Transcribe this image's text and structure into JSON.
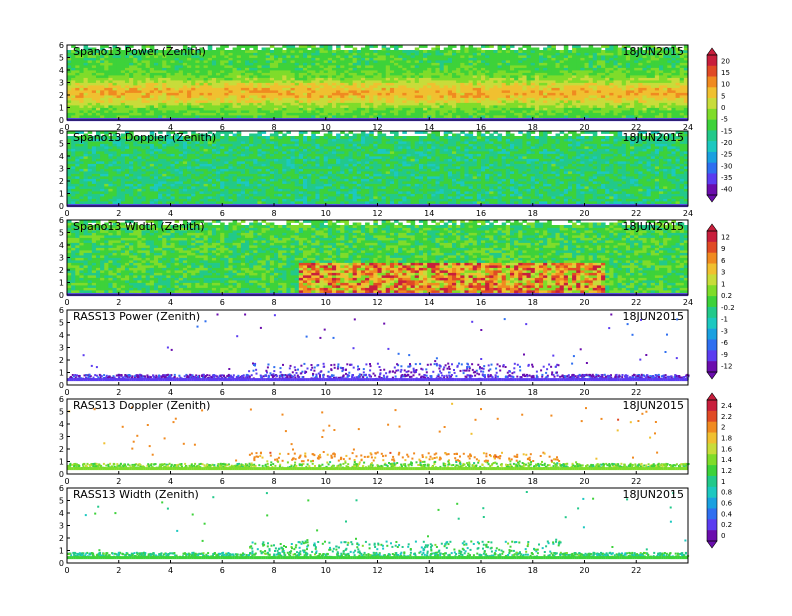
{
  "date_label": "18JUN2015",
  "palettes": {
    "spectral": [
      "#6a0dad",
      "#5b3cf0",
      "#2f6ff0",
      "#1aa0e0",
      "#1cc8c0",
      "#22c98a",
      "#3dd23a",
      "#7fdc2a",
      "#c8dc3a",
      "#f0c030",
      "#f08a20",
      "#e04a25",
      "#c81e3c"
    ],
    "width_low": [
      "#3dd23a",
      "#36cf5a",
      "#22c98a",
      "#7fdc2a",
      "#1cc8c0"
    ]
  },
  "chart_data": [
    {
      "type": "heatmap",
      "title": "Spano13 Power (Zenith)",
      "x_ticks": [
        0,
        2,
        4,
        6,
        8,
        10,
        12,
        14,
        16,
        18,
        20,
        22,
        24
      ],
      "y_ticks": [
        0,
        1,
        2,
        3,
        4,
        5,
        6
      ],
      "xlim": [
        0,
        24
      ],
      "ylim": [
        0,
        6
      ],
      "z_bias": 0.55,
      "colorbar": {
        "ticks": [
          "20",
          "15",
          "10",
          "5",
          "0",
          "-5",
          "-15",
          "-20",
          "-25",
          "-30",
          "-35",
          "-40"
        ]
      }
    },
    {
      "type": "heatmap",
      "title": "Spano13 Doppler (Zenith)",
      "x_ticks": [
        0,
        2,
        4,
        6,
        8,
        10,
        12,
        14,
        16,
        18,
        20,
        22,
        24
      ],
      "y_ticks": [
        0,
        1,
        2,
        3,
        4,
        5,
        6
      ],
      "xlim": [
        0,
        24
      ],
      "ylim": [
        0,
        6
      ],
      "z_bias": 0.45
    },
    {
      "type": "heatmap",
      "title": "Spano13 Width (Zenith)",
      "x_ticks": [
        0,
        2,
        4,
        6,
        8,
        10,
        12,
        14,
        16,
        18,
        20,
        22,
        24
      ],
      "y_ticks": [
        0,
        1,
        2,
        3,
        4,
        5,
        6
      ],
      "xlim": [
        0,
        24
      ],
      "ylim": [
        0,
        6
      ],
      "z_bias": 0.5,
      "colorbar": {
        "ticks": [
          "12",
          "9",
          "6",
          "3",
          "1",
          "0.2",
          "-0.2",
          "-1",
          "-3",
          "-6",
          "-9",
          "-12"
        ]
      }
    },
    {
      "type": "scatter",
      "title": "RASS13 Power (Zenith)",
      "x_ticks": [
        0,
        2,
        4,
        6,
        8,
        10,
        12,
        14,
        16,
        18,
        20,
        22
      ],
      "y_ticks": [
        0,
        1,
        2,
        3,
        4,
        5,
        6
      ],
      "xlim": [
        0,
        24
      ],
      "ylim": [
        0,
        6
      ],
      "z_bias": 0.1
    },
    {
      "type": "scatter",
      "title": "RASS13 Doppler (Zenith)",
      "x_ticks": [
        0,
        2,
        4,
        6,
        8,
        10,
        12,
        14,
        16,
        18,
        20,
        22
      ],
      "y_ticks": [
        0,
        1,
        2,
        3,
        4,
        5,
        6
      ],
      "xlim": [
        0,
        24
      ],
      "ylim": [
        0,
        6
      ],
      "z_bias": 0.55,
      "colorbar": {
        "ticks": [
          "2.4",
          "2.2",
          "2",
          "1.8",
          "1.6",
          "1.4",
          "1.2",
          "1",
          "0.8",
          "0.6",
          "0.4",
          "0.2",
          "0"
        ]
      }
    },
    {
      "type": "scatter",
      "title": "RASS13 Width (Zenith)",
      "x_ticks": [
        0,
        2,
        4,
        6,
        8,
        10,
        12,
        14,
        16,
        18,
        20,
        22
      ],
      "y_ticks": [
        0,
        1,
        2,
        3,
        4,
        5,
        6
      ],
      "xlim": [
        0,
        24
      ],
      "ylim": [
        0,
        6
      ],
      "z_bias": 0.45
    }
  ]
}
